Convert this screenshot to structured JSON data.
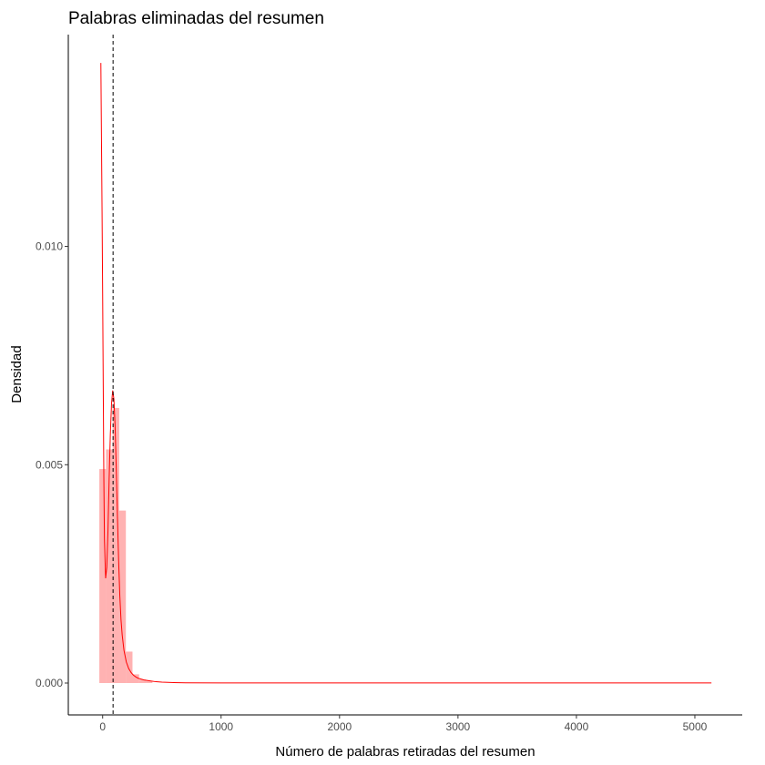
{
  "chart_data": {
    "type": "histogram",
    "title": "Palabras eliminadas del resumen",
    "xlabel": "Número de palabras retiradas del resumen",
    "ylabel": "Densidad",
    "xlim": [
      -290,
      5400
    ],
    "ylim": [
      -0.00073,
      0.01485
    ],
    "x_ticks": [
      0,
      1000,
      2000,
      3000,
      4000,
      5000
    ],
    "x_tick_labels": [
      "0",
      "1000",
      "2000",
      "3000",
      "4000",
      "5000"
    ],
    "y_ticks": [
      0.0,
      0.005,
      0.01
    ],
    "y_tick_labels": [
      "0.000",
      "0.005",
      "0.010"
    ],
    "grid": false,
    "legend": "none",
    "colors": {
      "bar_fill": "#ff6666",
      "bar_opacity": 0.5,
      "density_line": "#ff0000",
      "reference_line": "#000000"
    },
    "histogram_bins": [
      {
        "x0": -28,
        "x1": 28,
        "density": 0.0049
      },
      {
        "x0": 28,
        "x1": 84,
        "density": 0.00535
      },
      {
        "x0": 84,
        "x1": 140,
        "density": 0.0063
      },
      {
        "x0": 140,
        "x1": 196,
        "density": 0.00395
      },
      {
        "x0": 196,
        "x1": 252,
        "density": 0.00072
      },
      {
        "x0": 252,
        "x1": 308,
        "density": 0.0002
      },
      {
        "x0": 308,
        "x1": 364,
        "density": 8e-05
      },
      {
        "x0": 364,
        "x1": 420,
        "density": 5e-05
      }
    ],
    "density_curve": {
      "x": [
        -15,
        -10,
        -5,
        0,
        5,
        10,
        15,
        25,
        35,
        45,
        55,
        65,
        75,
        85,
        95,
        105,
        115,
        125,
        135,
        145,
        155,
        165,
        180,
        200,
        220,
        240,
        260,
        280,
        300,
        350,
        400,
        450,
        500,
        600,
        700,
        1000,
        2000,
        3000,
        4000,
        5000,
        5140
      ],
      "y": [
        0.0142,
        0.0125,
        0.0108,
        0.0089,
        0.0068,
        0.0047,
        0.0033,
        0.0024,
        0.00265,
        0.0035,
        0.0047,
        0.0057,
        0.0064,
        0.0067,
        0.0065,
        0.0059,
        0.0049,
        0.0038,
        0.0028,
        0.002,
        0.00145,
        0.0011,
        0.00075,
        0.00048,
        0.00033,
        0.00024,
        0.00018,
        0.00014,
        0.00011,
        7e-05,
        5e-05,
        3e-05,
        2e-05,
        1e-05,
        5e-06,
        3e-06,
        2e-06,
        2e-06,
        2e-06,
        2e-06,
        2e-06
      ]
    },
    "reference_line": {
      "x": 88
    }
  }
}
